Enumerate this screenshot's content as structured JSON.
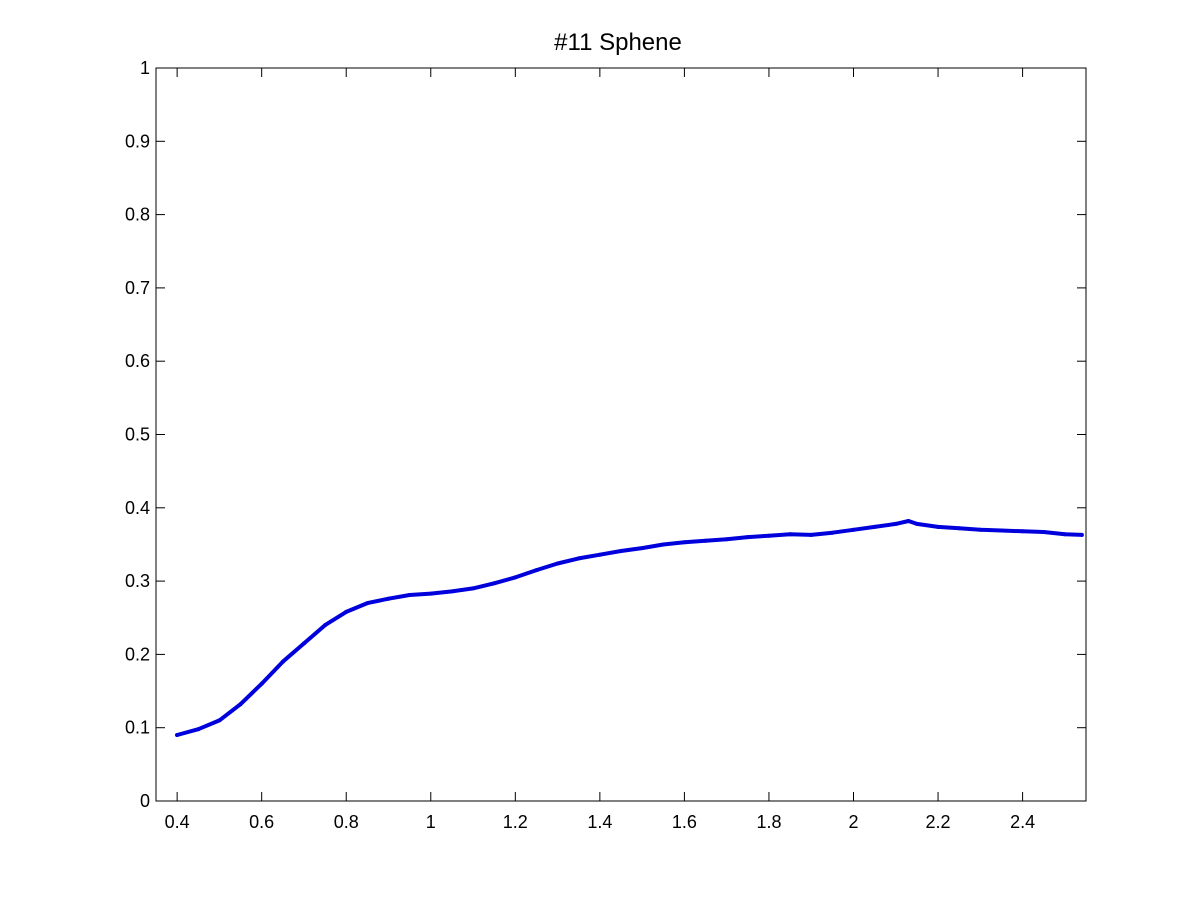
{
  "chart_data": {
    "type": "line",
    "title": "#11 Sphene",
    "xlabel": "",
    "ylabel": "",
    "xlim": [
      0.35,
      2.55
    ],
    "ylim": [
      0,
      1
    ],
    "grid": false,
    "x_ticks": [
      "0.4",
      "0.6",
      "0.8",
      "1",
      "1.2",
      "1.4",
      "1.6",
      "1.8",
      "2",
      "2.2",
      "2.4"
    ],
    "y_ticks": [
      "0",
      "0.1",
      "0.2",
      "0.3",
      "0.4",
      "0.5",
      "0.6",
      "0.7",
      "0.8",
      "0.9",
      "1"
    ],
    "series": [
      {
        "color": "#0000dd",
        "x": [
          0.4,
          0.45,
          0.5,
          0.55,
          0.6,
          0.65,
          0.7,
          0.75,
          0.8,
          0.85,
          0.9,
          0.95,
          1.0,
          1.05,
          1.1,
          1.15,
          1.2,
          1.25,
          1.3,
          1.35,
          1.4,
          1.45,
          1.5,
          1.55,
          1.6,
          1.65,
          1.7,
          1.75,
          1.8,
          1.85,
          1.9,
          1.95,
          2.0,
          2.05,
          2.1,
          2.13,
          2.15,
          2.2,
          2.25,
          2.3,
          2.35,
          2.4,
          2.45,
          2.5,
          2.54
        ],
        "y": [
          0.09,
          0.098,
          0.11,
          0.132,
          0.16,
          0.19,
          0.215,
          0.24,
          0.258,
          0.27,
          0.276,
          0.281,
          0.283,
          0.286,
          0.29,
          0.297,
          0.305,
          0.315,
          0.324,
          0.331,
          0.336,
          0.341,
          0.345,
          0.35,
          0.353,
          0.355,
          0.357,
          0.36,
          0.362,
          0.364,
          0.363,
          0.366,
          0.37,
          0.374,
          0.378,
          0.382,
          0.378,
          0.374,
          0.372,
          0.37,
          0.369,
          0.368,
          0.367,
          0.364,
          0.363
        ]
      }
    ]
  }
}
